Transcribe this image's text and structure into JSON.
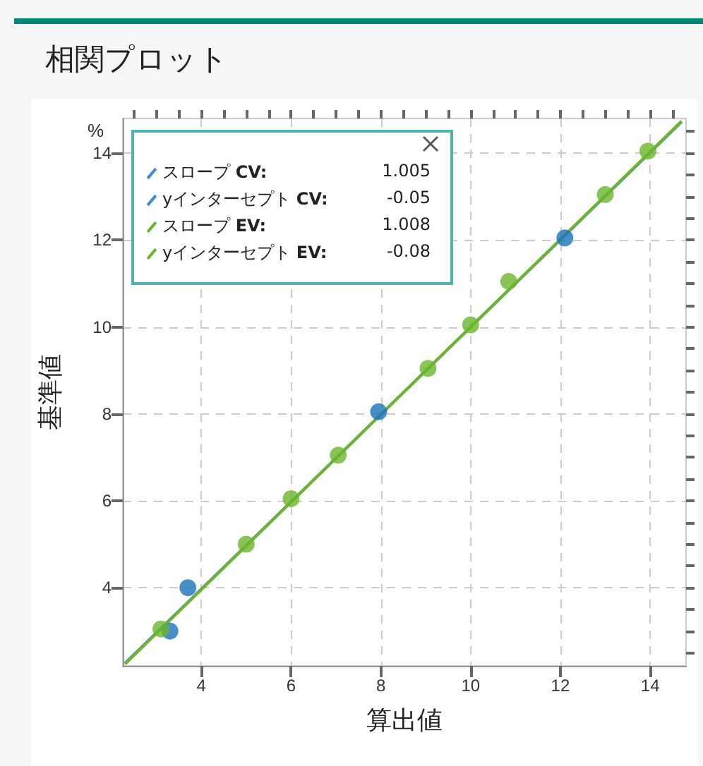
{
  "chart_data": {
    "type": "scatter",
    "title": "相関プロット",
    "xlabel": "算出値",
    "ylabel": "基準値",
    "annotations": [
      "%",
      "スロープ CV:",
      "1.005",
      "yインターセプト CV:",
      "-0.05",
      "スロープ EV:",
      "1.008",
      "yインターセプト EV:",
      "-0.08"
    ],
    "xlim": [
      2.25,
      14.8
    ],
    "ylim": [
      2.2,
      14.8
    ],
    "xticks": [
      {
        "value": 2.5,
        "label": null
      },
      {
        "value": 3,
        "label": null
      },
      {
        "value": 3.5,
        "label": null
      },
      4,
      {
        "value": 4.5,
        "label": null
      },
      {
        "value": 5,
        "label": null
      },
      {
        "value": 5.5,
        "label": null
      },
      6,
      {
        "value": 6.5,
        "label": null
      },
      {
        "value": 7,
        "label": null
      },
      {
        "value": 7.5,
        "label": null
      },
      8,
      {
        "value": 8.5,
        "label": null
      },
      {
        "value": 9,
        "label": null
      },
      {
        "value": 9.5,
        "label": null
      },
      10,
      {
        "value": 10.5,
        "label": null
      },
      {
        "value": 11,
        "label": null
      },
      {
        "value": 11.5,
        "label": null
      },
      12,
      {
        "value": 12.5,
        "label": null
      },
      {
        "value": 13,
        "label": null
      },
      {
        "value": 13.5,
        "label": null
      },
      14,
      {
        "value": 14.5,
        "label": null
      }
    ],
    "yticks": [
      {
        "value": 2.5,
        "label": null
      },
      {
        "value": 3,
        "label": null
      },
      {
        "value": 3.5,
        "label": null
      },
      4,
      {
        "value": 4.5,
        "label": null
      },
      {
        "value": 5,
        "label": null
      },
      {
        "value": 5.5,
        "label": null
      },
      6,
      {
        "value": 6.5,
        "label": null
      },
      {
        "value": 7,
        "label": null
      },
      {
        "value": 7.5,
        "label": null
      },
      8,
      {
        "value": 8.5,
        "label": null
      },
      {
        "value": 9,
        "label": null
      },
      {
        "value": 9.5,
        "label": null
      },
      10,
      {
        "value": 10.5,
        "label": null
      },
      {
        "value": 11,
        "label": null
      },
      {
        "value": 11.5,
        "label": null
      },
      12,
      {
        "value": 12.5,
        "label": null
      },
      {
        "value": 13,
        "label": null
      },
      {
        "value": 13.5,
        "label": null
      },
      14,
      {
        "value": 14.5,
        "label": null
      }
    ],
    "grid": true,
    "marker": "circle",
    "series": [
      {
        "color": "#1a72b9",
        "x": [
          3.3,
          3.7,
          7.95,
          12.1
        ],
        "values": [
          3.0,
          4.0,
          8.05,
          12.05
        ]
      },
      {
        "color": "#6cb52d",
        "x": [
          3.1,
          5.0,
          6.0,
          7.05,
          9.05,
          10.0,
          10.85,
          13.0,
          13.95
        ],
        "values": [
          3.05,
          5.0,
          6.05,
          7.05,
          9.05,
          10.05,
          11.05,
          13.05,
          14.05
        ]
      },
      {
        "type": "line",
        "marker": "none",
        "color": "#3d8fd0",
        "x": [
          2.3,
          14.7
        ],
        "values": [
          2.26,
          14.72
        ]
      },
      {
        "type": "line",
        "marker": "none",
        "color": "#6cb52d",
        "x": [
          2.3,
          14.7
        ],
        "values": [
          2.24,
          14.74
        ]
      }
    ]
  }
}
